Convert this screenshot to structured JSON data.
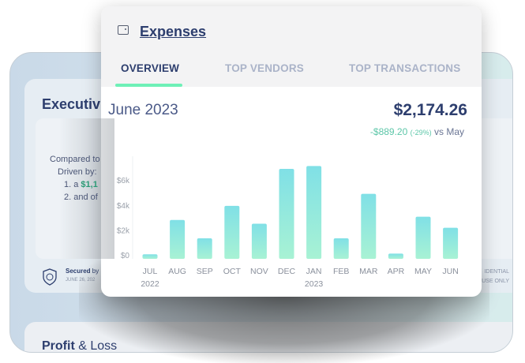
{
  "background": {
    "executive": {
      "title": "Executiv",
      "lines": [
        "Compared to",
        "Driven by:",
        "1. a ",
        "$1,1",
        "2. and of"
      ],
      "secured_label": "Secured",
      "secured_by": " by",
      "date": "JUNE 26, 202",
      "confidential_1": "IDENTIAL",
      "confidential_2": "USE ONLY"
    },
    "profit_loss": {
      "title_bold": "Profit",
      "title_rest": " & Loss"
    }
  },
  "popup": {
    "icon": "wallet-icon",
    "title": "Expenses",
    "tabs": [
      {
        "label": "OVERVIEW",
        "active": true
      },
      {
        "label": "TOP VENDORS",
        "active": false
      },
      {
        "label": "TOP TRANSACTIONS",
        "active": false
      }
    ],
    "period": "June 2023",
    "total": "$2,174.26",
    "delta_amount": "-$889.20",
    "delta_pct": "(-29%)",
    "delta_vs": "vs May",
    "colors": {
      "accent": "#6ef0b7",
      "bar_top": "#80e0e6",
      "bar_bottom": "#a8f2d4",
      "title": "#2d3e6e"
    }
  },
  "chart_data": {
    "type": "bar",
    "categories": [
      "JUL",
      "AUG",
      "SEP",
      "OCT",
      "NOV",
      "DEC",
      "JAN",
      "FEB",
      "MAR",
      "APR",
      "MAY",
      "JUN"
    ],
    "year_labels": {
      "JUL": "2022",
      "JAN": "2023"
    },
    "values": [
      50,
      2800,
      1330,
      3930,
      2500,
      6900,
      7130,
      1330,
      4900,
      100,
      3063.46,
      2174.26
    ],
    "yticks": [
      "$0",
      "$2k",
      "$4k",
      "$6k"
    ],
    "ytick_values": [
      0,
      2000,
      4000,
      6000
    ],
    "ylim": [
      0,
      7300
    ],
    "grid": false
  }
}
